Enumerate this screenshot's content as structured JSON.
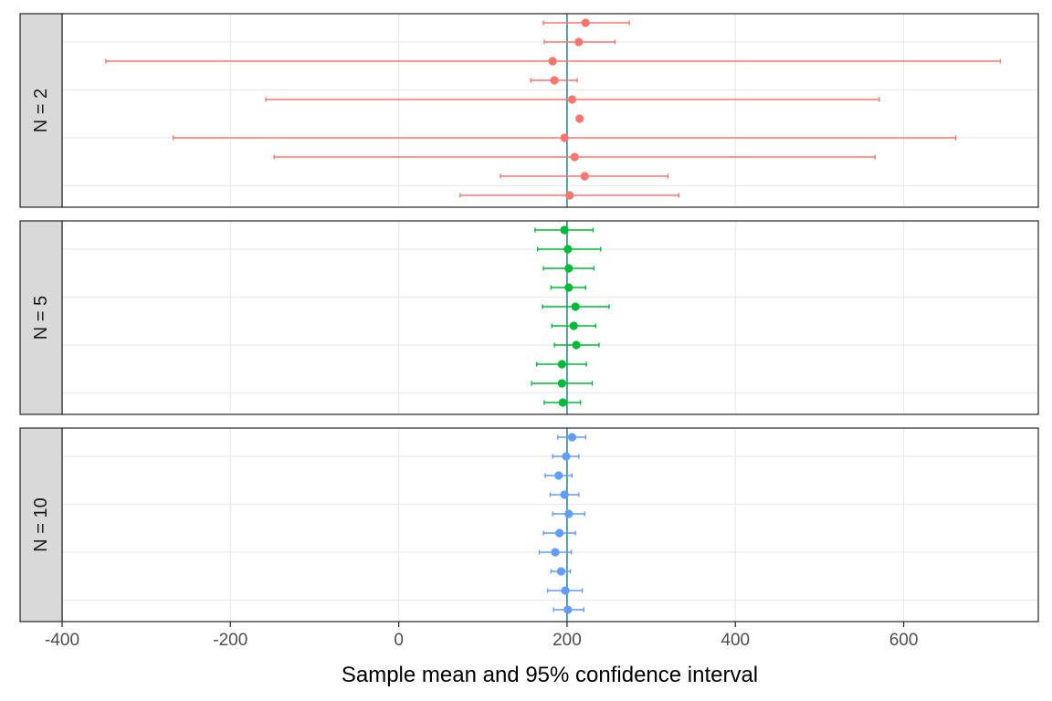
{
  "chart_data": {
    "type": "scatter",
    "subtype": "point-with-errorbars",
    "title": "",
    "xlabel": "Sample mean and 95% confidence interval",
    "ylabel": "",
    "xlim": [
      -400,
      760
    ],
    "x_ticks": [
      -400,
      -200,
      0,
      200,
      400,
      600
    ],
    "x_tick_labels": [
      "-400",
      "-200",
      "0",
      "200",
      "400",
      "600"
    ],
    "reference_line_x": 200,
    "reference_line_color": "#2e8b8b",
    "grid": true,
    "legend": "none",
    "facets": [
      {
        "label": "N = 2",
        "color": "#F8766D",
        "points": [
          {
            "mean": 222,
            "lower": 172,
            "upper": 274
          },
          {
            "mean": 214,
            "lower": 173,
            "upper": 257
          },
          {
            "mean": 183,
            "lower": -348,
            "upper": 715
          },
          {
            "mean": 185,
            "lower": 157,
            "upper": 212
          },
          {
            "mean": 206,
            "lower": -158,
            "upper": 571
          },
          {
            "mean": 215,
            "lower": 215,
            "upper": 215
          },
          {
            "mean": 197,
            "lower": -268,
            "upper": 662
          },
          {
            "mean": 209,
            "lower": -148,
            "upper": 566
          },
          {
            "mean": 221,
            "lower": 121,
            "upper": 320
          },
          {
            "mean": 203,
            "lower": 73,
            "upper": 333
          }
        ]
      },
      {
        "label": "N = 5",
        "color": "#00BA38",
        "points": [
          {
            "mean": 197,
            "lower": 162,
            "upper": 231
          },
          {
            "mean": 201,
            "lower": 165,
            "upper": 240
          },
          {
            "mean": 202,
            "lower": 172,
            "upper": 232
          },
          {
            "mean": 202,
            "lower": 181,
            "upper": 222
          },
          {
            "mean": 210,
            "lower": 171,
            "upper": 250
          },
          {
            "mean": 208,
            "lower": 182,
            "upper": 234
          },
          {
            "mean": 211,
            "lower": 185,
            "upper": 238
          },
          {
            "mean": 194,
            "lower": 164,
            "upper": 223
          },
          {
            "mean": 194,
            "lower": 158,
            "upper": 230
          },
          {
            "mean": 195,
            "lower": 173,
            "upper": 216
          }
        ]
      },
      {
        "label": "N = 10",
        "color": "#619CFF",
        "points": [
          {
            "mean": 206,
            "lower": 189,
            "upper": 222
          },
          {
            "mean": 199,
            "lower": 183,
            "upper": 214
          },
          {
            "mean": 190,
            "lower": 174,
            "upper": 206
          },
          {
            "mean": 197,
            "lower": 180,
            "upper": 214
          },
          {
            "mean": 202,
            "lower": 183,
            "upper": 221
          },
          {
            "mean": 191,
            "lower": 172,
            "upper": 210
          },
          {
            "mean": 186,
            "lower": 167,
            "upper": 205
          },
          {
            "mean": 193,
            "lower": 181,
            "upper": 204
          },
          {
            "mean": 198,
            "lower": 177,
            "upper": 218
          },
          {
            "mean": 201,
            "lower": 184,
            "upper": 220
          }
        ]
      }
    ]
  }
}
